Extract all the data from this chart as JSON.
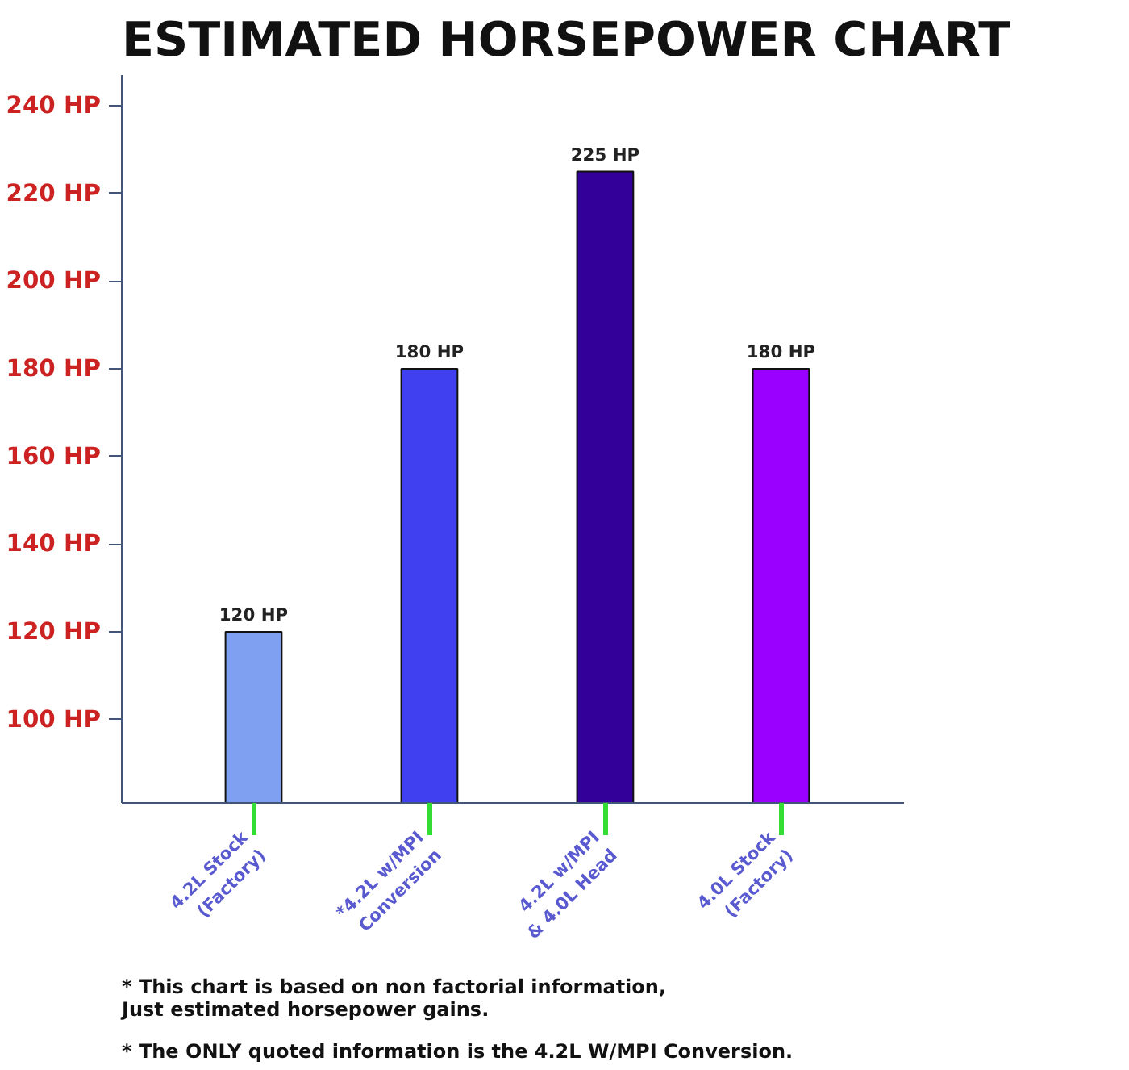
{
  "chart_data": {
    "type": "bar",
    "title": "ESTIMATED HORSEPOWER CHART",
    "categories": [
      "4.2L Stock\n(Factory)",
      "*4.2L w/MPI\nConversion",
      "4.2L w/MPI\n& 4.0L Head",
      "4.0L Stock\n(Factory)"
    ],
    "values": [
      120,
      180,
      225,
      180
    ],
    "colors": [
      "#7f9ff0",
      "#4040f0",
      "#330099",
      "#9900ff"
    ],
    "value_labels": [
      "120 HP",
      "180 HP",
      "225 HP",
      "180 HP"
    ],
    "ylim": [
      81,
      247
    ],
    "yticks": [
      {
        "value": 100,
        "label": "100 HP"
      },
      {
        "value": 120,
        "label": "120 HP"
      },
      {
        "value": 140,
        "label": "140 HP"
      },
      {
        "value": 160,
        "label": "160 HP"
      },
      {
        "value": 180,
        "label": "180 HP"
      },
      {
        "value": 200,
        "label": "200 HP"
      },
      {
        "value": 220,
        "label": "220 HP"
      },
      {
        "value": 240,
        "label": "240 HP"
      }
    ],
    "grid": false,
    "annotations": [
      "* This chart is based on non factorial information,\n   Just estimated horsepower gains.",
      "* The ONLY quoted information is the 4.2L W/MPI Conversion."
    ]
  }
}
